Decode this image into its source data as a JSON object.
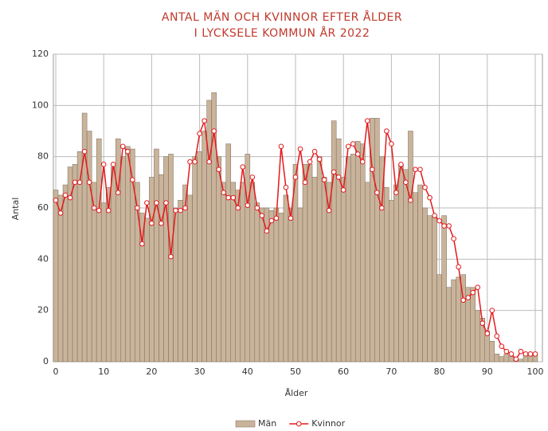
{
  "chart_data": {
    "type": "bar-line",
    "title": [
      "ANTAL MÄN OCH KVINNOR EFTER ÅLDER",
      "I LYCKSELE KOMMUN ÅR 2022"
    ],
    "x_label": "Ålder",
    "y_label": "Antal",
    "x": [
      0,
      1,
      2,
      3,
      4,
      5,
      6,
      7,
      8,
      9,
      10,
      11,
      12,
      13,
      14,
      15,
      16,
      17,
      18,
      19,
      20,
      21,
      22,
      23,
      24,
      25,
      26,
      27,
      28,
      29,
      30,
      31,
      32,
      33,
      34,
      35,
      36,
      37,
      38,
      39,
      40,
      41,
      42,
      43,
      44,
      45,
      46,
      47,
      48,
      49,
      50,
      51,
      52,
      53,
      54,
      55,
      56,
      57,
      58,
      59,
      60,
      61,
      62,
      63,
      64,
      65,
      66,
      67,
      68,
      69,
      70,
      71,
      72,
      73,
      74,
      75,
      76,
      77,
      78,
      79,
      80,
      81,
      82,
      83,
      84,
      85,
      86,
      87,
      88,
      89,
      90,
      91,
      92,
      93,
      94,
      95,
      96,
      97,
      98,
      99,
      100
    ],
    "series": [
      {
        "name": "Män",
        "kind": "bar",
        "color": "#c9b49b",
        "values": [
          67,
          65,
          69,
          76,
          77,
          82,
          97,
          90,
          70,
          87,
          62,
          68,
          76,
          87,
          80,
          84,
          83,
          70,
          58,
          56,
          72,
          83,
          73,
          80,
          81,
          60,
          63,
          69,
          65,
          80,
          82,
          90,
          102,
          105,
          80,
          70,
          85,
          70,
          67,
          70,
          81,
          70,
          62,
          60,
          60,
          59,
          60,
          58,
          65,
          60,
          77,
          60,
          77,
          77,
          72,
          80,
          72,
          70,
          94,
          87,
          72,
          80,
          81,
          86,
          85,
          70,
          95,
          95,
          80,
          68,
          63,
          69,
          77,
          75,
          90,
          66,
          69,
          60,
          57,
          57,
          34,
          57,
          29,
          32,
          33,
          34,
          29,
          29,
          20,
          17,
          12,
          8,
          3,
          2,
          3,
          2,
          1,
          1,
          3,
          3,
          3
        ]
      },
      {
        "name": "Kvinnor",
        "kind": "line",
        "color": "#e41a1c",
        "values": [
          63,
          58,
          65,
          64,
          70,
          70,
          82,
          70,
          60,
          59,
          77,
          59,
          77,
          66,
          84,
          82,
          71,
          60,
          46,
          62,
          54,
          62,
          54,
          62,
          41,
          59,
          59,
          60,
          78,
          78,
          89,
          94,
          78,
          90,
          75,
          66,
          64,
          64,
          60,
          76,
          61,
          72,
          60,
          57,
          51,
          55,
          56,
          84,
          68,
          56,
          72,
          83,
          70,
          78,
          82,
          79,
          71,
          59,
          74,
          72,
          67,
          84,
          85,
          81,
          78,
          94,
          75,
          66,
          60,
          90,
          85,
          66,
          77,
          70,
          63,
          75,
          75,
          68,
          64,
          57,
          55,
          53,
          53,
          48,
          37,
          24,
          25,
          27,
          29,
          15,
          11,
          20,
          10,
          6,
          4,
          3,
          1,
          4,
          3,
          3,
          3
        ]
      }
    ],
    "xlim": [
      -0.5,
      101.5
    ],
    "ylim": [
      0,
      120
    ],
    "xticks": [
      0,
      10,
      20,
      30,
      40,
      50,
      60,
      70,
      80,
      90,
      100
    ],
    "yticks": [
      0,
      20,
      40,
      60,
      80,
      100,
      120
    ],
    "grid": true,
    "legend": "bottom"
  }
}
